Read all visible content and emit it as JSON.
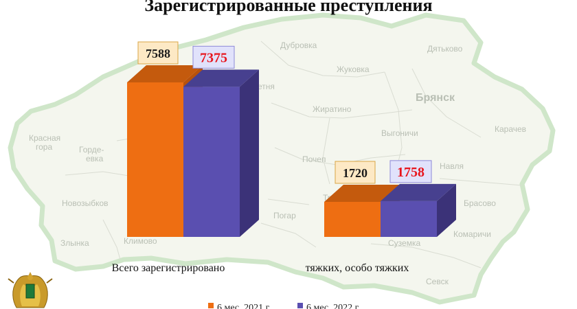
{
  "chart_data": {
    "type": "bar",
    "title": "Зарегистрированные преступления",
    "categories": [
      "Всего зарегистрировано",
      "тяжких, особо тяжких"
    ],
    "series": [
      {
        "name": "6 мес. 2021 г.",
        "values": [
          7588,
          1720
        ],
        "color": "#ee6e12",
        "side_color": "#b8520b",
        "top_color": "#c45a0d",
        "label_fill": "#fde9c5",
        "label_text": "#1a1a1a"
      },
      {
        "name": "6 мес. 2022 г.",
        "values": [
          7375,
          1758
        ],
        "color": "#5a4fb0",
        "side_color": "#3b3278",
        "top_color": "#47408f",
        "label_fill": "#e1e2fb",
        "label_text": "#e8141c"
      }
    ],
    "ylim": [
      0,
      8500
    ],
    "grid": false,
    "legend": "bottom"
  },
  "map": {
    "labels": [
      "Дубровка",
      "Дятьково",
      "Жуковка",
      "Брянск",
      "Жиратино",
      "Карачев",
      "Выгоничи",
      "Красная",
      "гора",
      "Горде-",
      "евка",
      "Почеп",
      "Навля",
      "Новозыбков",
      "Брасово",
      "Погар",
      "Климово",
      "Злынка",
      "Суземка",
      "Комаричи",
      "Севск",
      "Трубчевск",
      "етня"
    ]
  },
  "emblem": "prosecutor-emblem"
}
